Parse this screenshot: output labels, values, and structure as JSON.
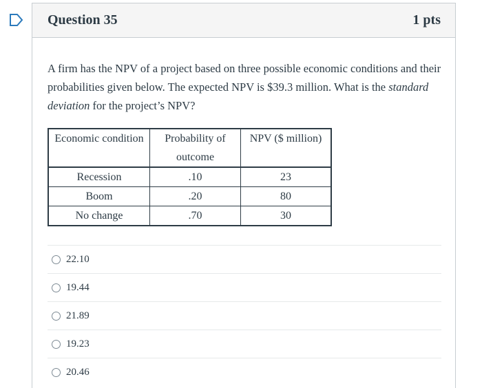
{
  "question": {
    "title": "Question 35",
    "points": "1 pts",
    "text_before_em": "A firm has the NPV of a project based on three possible economic conditions and their probabilities given below. The expected NPV is $39.3 million. What is the ",
    "text_em": "standard deviation",
    "text_after_em": " for the project’s NPV?"
  },
  "table": {
    "headers": [
      "Economic condition",
      "Probability of outcome",
      "NPV ($ million)"
    ],
    "rows": [
      {
        "condition": "Recession",
        "probability": ".10",
        "npv": "23"
      },
      {
        "condition": "Boom",
        "probability": ".20",
        "npv": "80"
      },
      {
        "condition": "No change",
        "probability": ".70",
        "npv": "30"
      }
    ]
  },
  "answers": [
    "22.10",
    "19.44",
    "21.89",
    "19.23",
    "20.46"
  ]
}
